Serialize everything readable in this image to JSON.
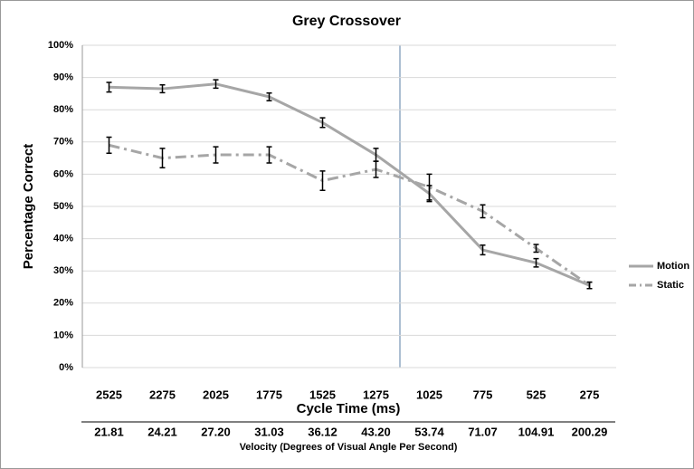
{
  "chart_data": {
    "type": "line",
    "title": "Grey Crossover",
    "x_label": "Cycle Time (ms)",
    "y_label": "Percentage Correct",
    "categories": [
      "2525",
      "2275",
      "2025",
      "1775",
      "1525",
      "1275",
      "1025",
      "775",
      "525",
      "275"
    ],
    "secondary_x_label": "Velocity (Degrees of Visual Angle Per Second)",
    "secondary_categories": [
      "21.81",
      "24.21",
      "27.20",
      "31.03",
      "36.12",
      "43.20",
      "53.74",
      "71.07",
      "104.91",
      "200.29"
    ],
    "series": [
      {
        "name": "Motion",
        "color": "#a6a6a6",
        "dash": "solid",
        "values": [
          87,
          86.5,
          88,
          84,
          76,
          66,
          54,
          36.5,
          32.5,
          25.5
        ],
        "errors": [
          1.5,
          1.2,
          1.3,
          1.2,
          1.5,
          2,
          2.5,
          1.5,
          1.3,
          1
        ]
      },
      {
        "name": "Static",
        "color": "#a6a6a6",
        "dash": "dashdot",
        "values": [
          69,
          65,
          66,
          66,
          58,
          61.5,
          56,
          48.5,
          37,
          25.5
        ],
        "errors": [
          2.5,
          3,
          2.5,
          2.5,
          3,
          2.5,
          4,
          2,
          1.2,
          1
        ]
      }
    ],
    "ylim": [
      0,
      100
    ],
    "yticks": [
      {
        "value": 0,
        "label": "0%"
      },
      {
        "value": 10,
        "label": "10%"
      },
      {
        "value": 20,
        "label": "20%"
      },
      {
        "value": 30,
        "label": "30%"
      },
      {
        "value": 40,
        "label": "40%"
      },
      {
        "value": 50,
        "label": "50%"
      },
      {
        "value": 60,
        "label": "60%"
      },
      {
        "value": 70,
        "label": "70%"
      },
      {
        "value": 80,
        "label": "80%"
      },
      {
        "value": 90,
        "label": "90%"
      },
      {
        "value": 100,
        "label": "100%"
      }
    ],
    "grid": true,
    "legend": "right"
  }
}
